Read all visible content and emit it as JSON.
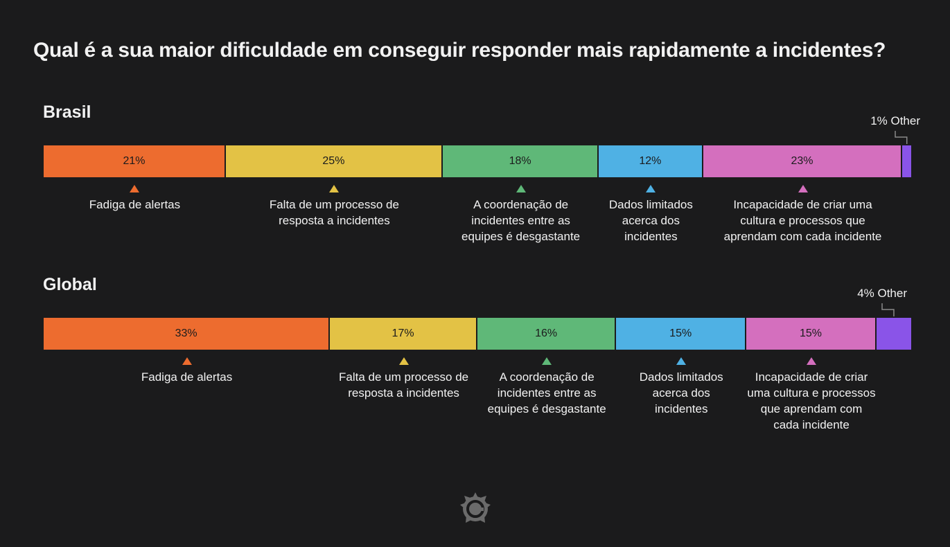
{
  "title": "Qual é a sua maior dificuldade em conseguir responder mais rapidamente a incidentes?",
  "colors": {
    "background": "#1b1b1c",
    "categories": [
      "#ed6c2f",
      "#e3c245",
      "#5fb878",
      "#4fb1e4",
      "#d46fbe",
      "#8a54e8"
    ]
  },
  "chart_data": [
    {
      "type": "stacked-bar",
      "title": "Brasil",
      "categories": [
        "Fadiga de alertas",
        "Falta de um processo de resposta a incidentes",
        "A coordenação de incidentes entre as equipes é desgastante",
        "Dados limitados acerca dos incidentes",
        "Incapacidade de criar uma cultura e processos que aprendam com cada incidente",
        "Other"
      ],
      "values": [
        21,
        25,
        18,
        12,
        23,
        1
      ],
      "segment_labels": [
        "21%",
        "25%",
        "18%",
        "12%",
        "23%"
      ],
      "label_lines": [
        [
          "Fadiga de alertas"
        ],
        [
          "Falta de um processo de",
          "resposta a incidentes"
        ],
        [
          "A coordenação de",
          "incidentes entre as",
          "equipes é desgastante"
        ],
        [
          "Dados limitados",
          "acerca dos",
          "incidentes"
        ],
        [
          "Incapacidade de criar uma",
          "cultura e processos que",
          "aprendam com cada incidente"
        ]
      ],
      "other_label": "1% Other"
    },
    {
      "type": "stacked-bar",
      "title": "Global",
      "categories": [
        "Fadiga de alertas",
        "Falta de um processo de resposta a incidentes",
        "A coordenação de incidentes entre as equipes é desgastante",
        "Dados limitados acerca dos incidentes",
        "Incapacidade de criar uma cultura e processos que aprendam com cada incidente",
        "Other"
      ],
      "values": [
        33,
        17,
        16,
        15,
        15,
        4
      ],
      "segment_labels": [
        "33%",
        "17%",
        "16%",
        "15%",
        "15%"
      ],
      "label_lines": [
        [
          "Fadiga de alertas"
        ],
        [
          "Falta de um processo de",
          "resposta a incidentes"
        ],
        [
          "A coordenação de",
          "incidentes entre as",
          "equipes é desgastante"
        ],
        [
          "Dados limitados",
          "acerca dos",
          "incidentes"
        ],
        [
          "Incapacidade de criar",
          "uma cultura e processos",
          "que aprendam com",
          "cada incidente"
        ]
      ],
      "other_label": "4% Other"
    }
  ],
  "logo": {
    "icon": "grafana-logo-icon"
  }
}
